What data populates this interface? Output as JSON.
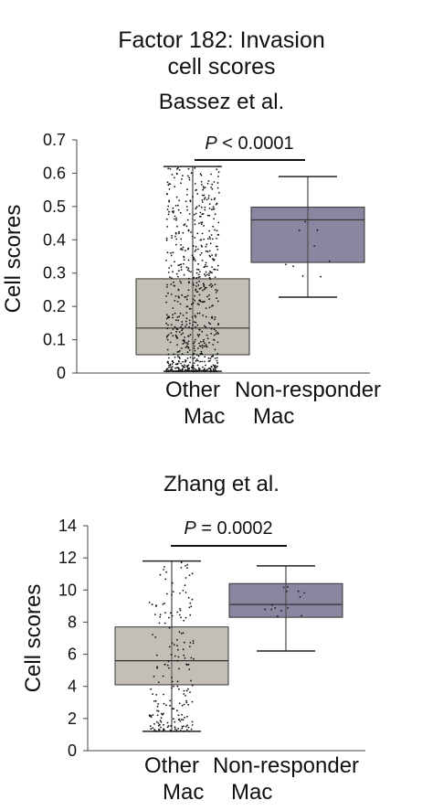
{
  "figure": {
    "title_line1": "Factor 182: Invasion",
    "title_line2": "cell scores"
  },
  "colors": {
    "other_box": "#c3bfb6",
    "nonresponder_box": "#8a86a0",
    "jitter_points": "#111111",
    "axis": "#444444"
  },
  "chart_data": [
    {
      "type": "box",
      "title": "Bassez et al.",
      "ylabel": "Cell scores",
      "ylim": [
        0,
        0.7
      ],
      "yticks": [
        0,
        0.1,
        0.2,
        0.3,
        0.4,
        0.5,
        0.6,
        0.7
      ],
      "ytick_labels": [
        "0",
        "0.1",
        "0.2",
        "0.3",
        "0.4",
        "0.5",
        "0.6",
        "0.7"
      ],
      "categories": [
        {
          "line1": "Other",
          "line2": "Mac"
        },
        {
          "line1": "Non-responder",
          "line2": "Mac"
        }
      ],
      "boxes": [
        {
          "name": "Other Mac",
          "min": 0.005,
          "q1": 0.055,
          "median": 0.135,
          "q3": 0.283,
          "max": 0.62,
          "n_points": 700
        },
        {
          "name": "Non-responder Mac",
          "min": 0.228,
          "q1": 0.332,
          "median": 0.46,
          "q3": 0.498,
          "max": 0.59,
          "n_points": 9
        }
      ],
      "pvalue": {
        "p": "P",
        "rest": " < 0.0001"
      }
    },
    {
      "type": "box",
      "title": "Zhang et al.",
      "ylabel": "Cell scores",
      "ylim": [
        0,
        14
      ],
      "yticks": [
        0,
        2,
        4,
        6,
        8,
        10,
        12,
        14
      ],
      "ytick_labels": [
        "0",
        "2",
        "4",
        "6",
        "8",
        "10",
        "12",
        "14"
      ],
      "categories": [
        {
          "line1": "Other",
          "line2": "Mac"
        },
        {
          "line1": "Non-responder",
          "line2": "Mac"
        }
      ],
      "boxes": [
        {
          "name": "Other Mac",
          "min": 1.2,
          "q1": 4.1,
          "median": 5.6,
          "q3": 7.7,
          "max": 11.8,
          "n_points": 200
        },
        {
          "name": "Non-responder Mac",
          "min": 6.2,
          "q1": 8.3,
          "median": 9.1,
          "q3": 10.4,
          "max": 11.5,
          "n_points": 14
        }
      ],
      "pvalue": {
        "p": "P",
        "rest": " = 0.0002"
      }
    }
  ]
}
